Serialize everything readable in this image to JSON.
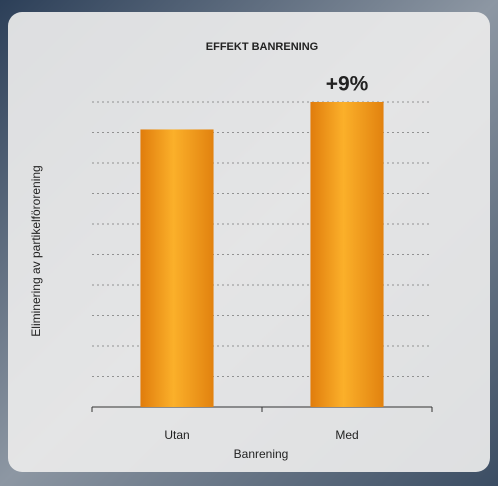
{
  "chart_data": {
    "type": "bar",
    "title": "EFFEKT BANRENING",
    "x_label": "Banrening",
    "y_label": "Eliminering av partikelförorening",
    "categories": [
      "Utan",
      "Med"
    ],
    "values": [
      91,
      100
    ],
    "annotation": "+9%",
    "color": "#f5a01a",
    "ylim": [
      0,
      100
    ],
    "yticks": [
      10,
      20,
      30,
      40,
      50,
      60,
      70,
      80,
      90,
      100
    ],
    "grid": true
  }
}
